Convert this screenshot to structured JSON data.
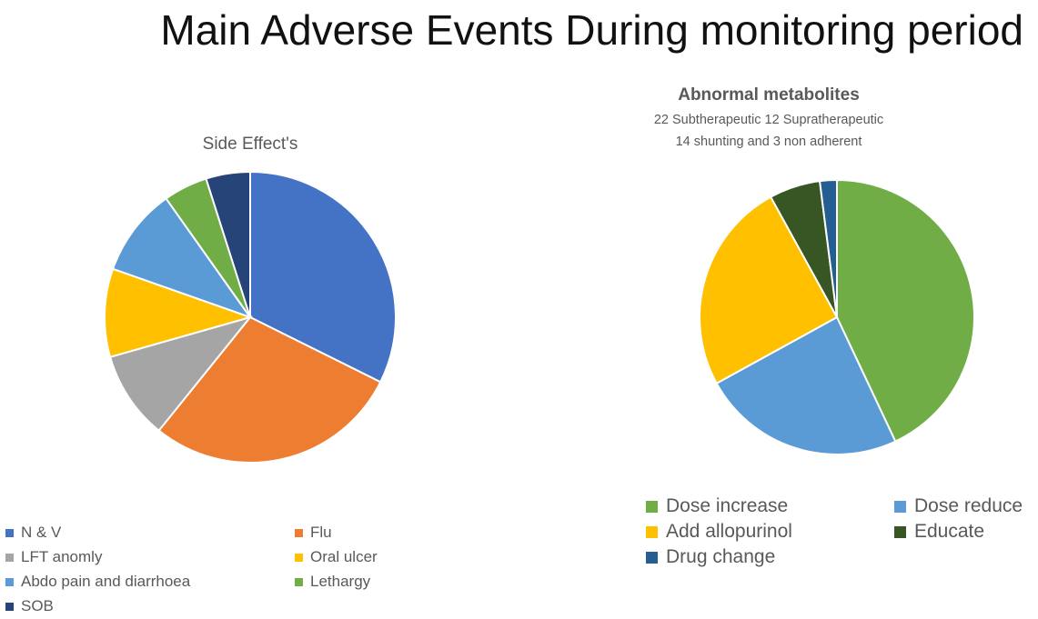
{
  "title": "Main Adverse Events During monitoring period",
  "chart_data": [
    {
      "type": "pie",
      "title": "Side Effect's",
      "subtitle_lines": [],
      "labels": [
        "N & V",
        "Flu",
        "LFT anomly",
        "Oral ulcer",
        "Abdo pain and diarrhoea",
        "Lethargy",
        "SOB"
      ],
      "values": [
        33,
        29,
        10,
        10,
        10,
        5,
        5
      ],
      "colors": [
        "#4472C4",
        "#ED7D31",
        "#A5A5A5",
        "#FFC000",
        "#5B9BD5",
        "#70AD47",
        "#264478"
      ],
      "legend_position": "bottom"
    },
    {
      "type": "pie",
      "title": "Abnormal metabolites",
      "subtitle_lines": [
        "22 Subtherapeutic 12 Supratherapeutic",
        "14 shunting and 3 non adherent"
      ],
      "labels": [
        "Dose increase",
        "Dose reduce",
        "Add allopurinol",
        "Educate",
        "Drug change"
      ],
      "values": [
        43,
        24,
        25,
        6,
        2
      ],
      "colors": [
        "#70AD47",
        "#5B9BD5",
        "#FFC000",
        "#375623",
        "#255E91"
      ],
      "legend_position": "bottom"
    }
  ]
}
